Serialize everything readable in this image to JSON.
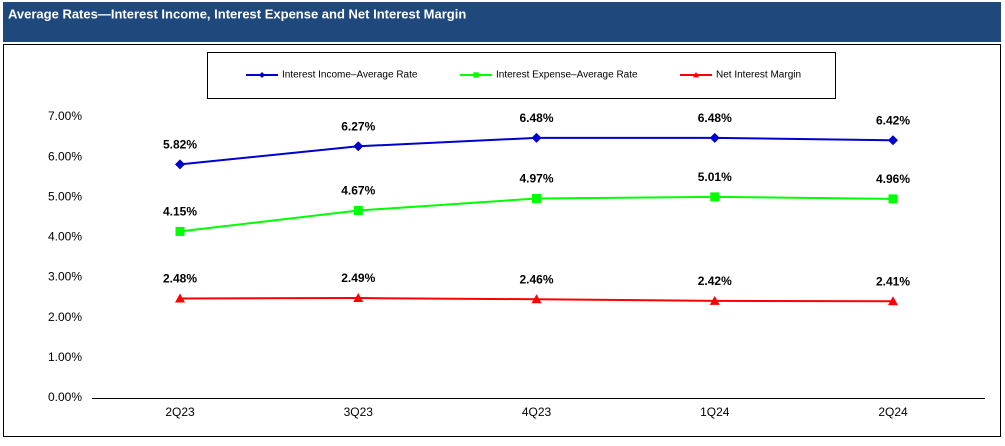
{
  "chart_data": {
    "type": "line",
    "title": "Average Rates—Interest Income, Interest Expense and Net Interest Margin",
    "categories": [
      "2Q23",
      "3Q23",
      "4Q23",
      "1Q24",
      "2Q24"
    ],
    "series": [
      {
        "name": "Interest Income–Average Rate",
        "color": "#0000cc",
        "marker": "diamond",
        "values": [
          5.82,
          6.27,
          6.48,
          6.48,
          6.42
        ],
        "value_labels": [
          "5.82%",
          "6.27%",
          "6.48%",
          "6.48%",
          "6.42%"
        ]
      },
      {
        "name": "Interest Expense–Average Rate",
        "color": "#00ff00",
        "marker": "square",
        "values": [
          4.15,
          4.67,
          4.97,
          5.01,
          4.96
        ],
        "value_labels": [
          "4.15%",
          "4.67%",
          "4.97%",
          "5.01%",
          "4.96%"
        ]
      },
      {
        "name": "Net Interest Margin",
        "color": "#ff0000",
        "marker": "triangle",
        "values": [
          2.48,
          2.49,
          2.46,
          2.42,
          2.41
        ],
        "value_labels": [
          "2.48%",
          "2.49%",
          "2.46%",
          "2.42%",
          "2.41%"
        ]
      }
    ],
    "ylim": [
      0,
      7
    ],
    "yticks": [
      {
        "value": 0,
        "label": "0.00%"
      },
      {
        "value": 1,
        "label": "1.00%"
      },
      {
        "value": 2,
        "label": "2.00%"
      },
      {
        "value": 3,
        "label": "3.00%"
      },
      {
        "value": 4,
        "label": "4.00%"
      },
      {
        "value": 5,
        "label": "5.00%"
      },
      {
        "value": 6,
        "label": "6.00%"
      },
      {
        "value": 7,
        "label": "7.00%"
      }
    ],
    "grid": false,
    "legend": "top"
  }
}
